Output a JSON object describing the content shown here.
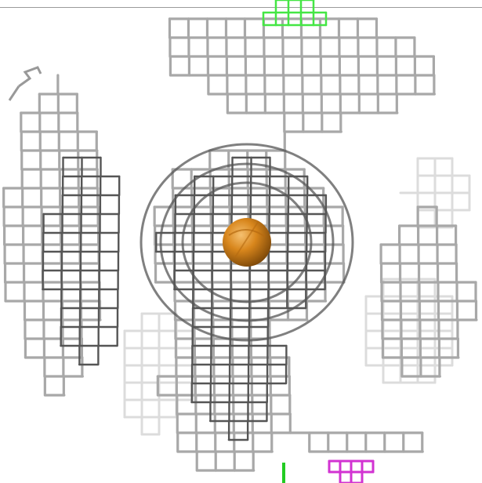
{
  "viewer": {
    "background": "#ffffff",
    "mesh_color": "#a8a8a8",
    "mesh_dark": "#555555",
    "mesh_light": "#dcdcdc",
    "atom_color": "#d8861c",
    "atom_highlight": "#f5c070",
    "green_mesh_color": "#44e644",
    "magenta_mesh_color": "#d233d2",
    "green_bond_color": "#22cc22"
  }
}
